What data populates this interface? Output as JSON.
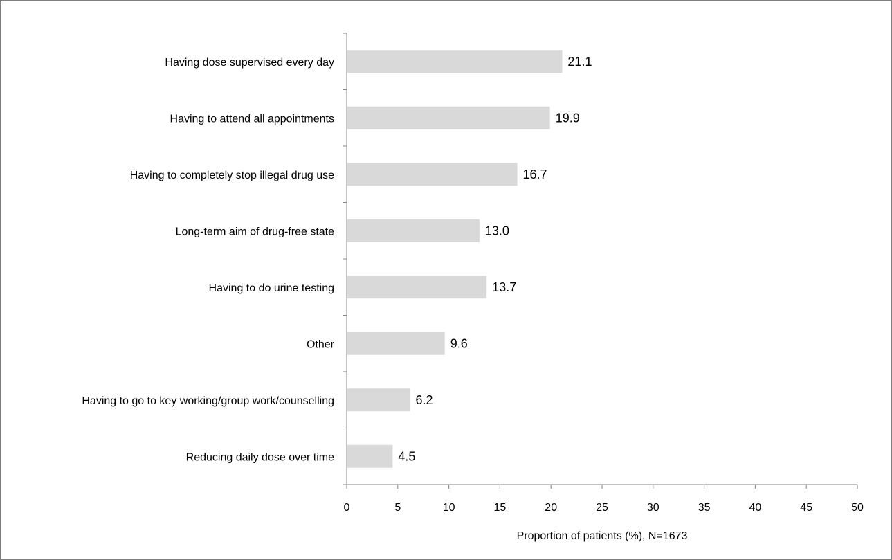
{
  "chart_data": {
    "type": "bar",
    "orientation": "horizontal",
    "title": "",
    "xlabel": "Proportion of patients (%), N=1673",
    "ylabel": "",
    "xlim": [
      0,
      50
    ],
    "xticks": [
      0,
      5,
      10,
      15,
      20,
      25,
      30,
      35,
      40,
      45,
      50
    ],
    "categories": [
      "Having dose supervised every day",
      "Having to attend all appointments",
      "Having to completely stop illegal drug use",
      "Long-term aim of drug-free state",
      "Having to do urine testing",
      "Other",
      "Having to go to key working/group work/counselling",
      "Reducing daily dose over time"
    ],
    "values": [
      21.1,
      19.9,
      16.7,
      13.0,
      13.7,
      9.6,
      6.2,
      4.5
    ],
    "value_labels": [
      "21.1",
      "19.9",
      "16.7",
      "13.0",
      "13.7",
      "9.6",
      "6.2",
      "4.5"
    ],
    "bar_color": "#d9d9d9",
    "axis_color": "#868686",
    "grid": false,
    "legend": "none"
  }
}
